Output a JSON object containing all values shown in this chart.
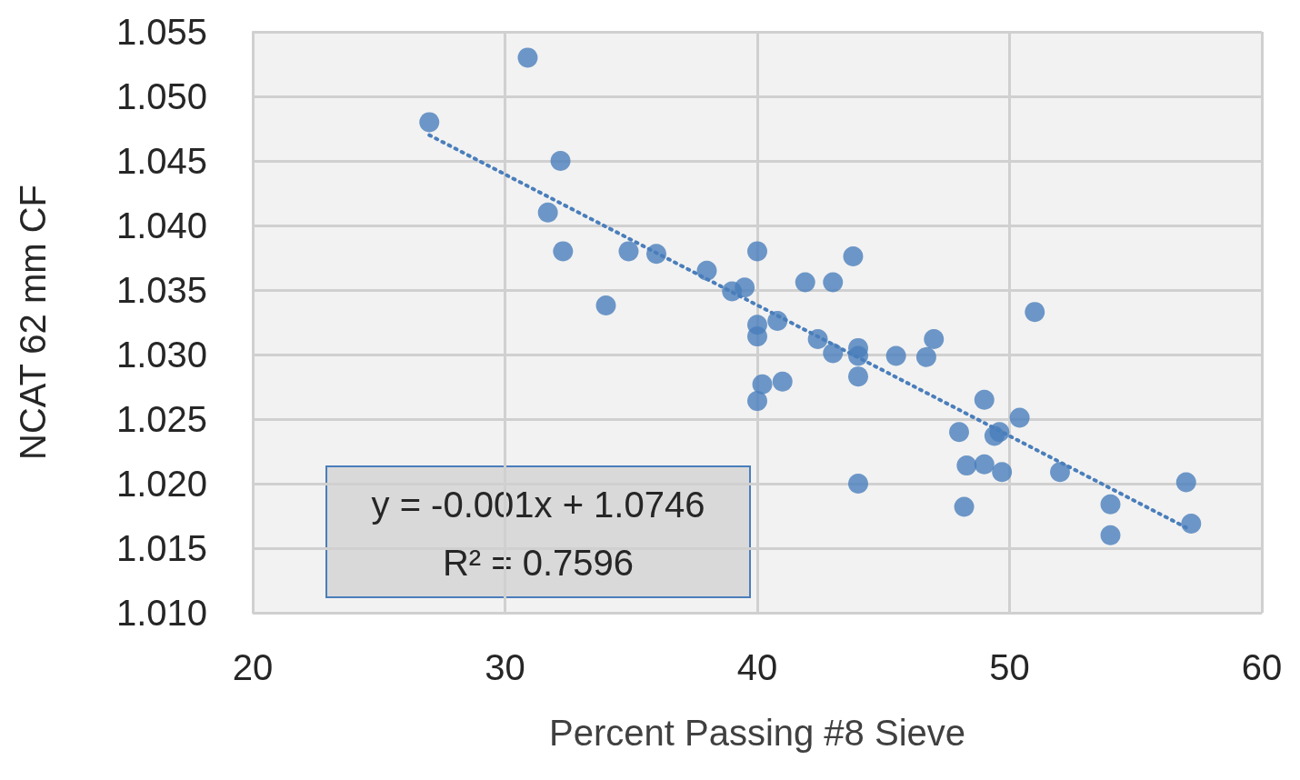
{
  "chart_data": {
    "type": "scatter",
    "xlabel": "Percent Passing #8 Sieve",
    "ylabel": "NCAT 62 mm CF",
    "xlim": [
      20,
      60
    ],
    "xticks": [
      20,
      30,
      40,
      50,
      60
    ],
    "ylim": [
      1.01,
      1.055
    ],
    "yticks": [
      {
        "value": 1.01,
        "label": "1.010"
      },
      {
        "value": 1.015,
        "label": "1.015"
      },
      {
        "value": 1.02,
        "label": "1.020"
      },
      {
        "value": 1.025,
        "label": "1.025"
      },
      {
        "value": 1.03,
        "label": "1.030"
      },
      {
        "value": 1.035,
        "label": "1.035"
      },
      {
        "value": 1.04,
        "label": "1.040"
      },
      {
        "value": 1.045,
        "label": "1.045"
      },
      {
        "value": 1.05,
        "label": "1.050"
      },
      {
        "value": 1.055,
        "label": "1.055"
      }
    ],
    "grid": true,
    "marker": "circle",
    "annotations": [
      "y = -0.001x + 1.0746",
      "R² = 0.7596"
    ],
    "series": [
      {
        "color": "#4a7ebb",
        "x": [
          27.0,
          30.9,
          32.2,
          31.7,
          32.3,
          34.0,
          34.9,
          36.0,
          38.0,
          39.0,
          39.5,
          40.0,
          40.0,
          40.0,
          40.8,
          40.2,
          40.0,
          41.0,
          41.9,
          43.0,
          43.8,
          42.4,
          43.0,
          44.0,
          44.0,
          44.0,
          44.0,
          45.5,
          46.7,
          47.0,
          51.0,
          49.0,
          48.0,
          50.4,
          49.4,
          49.6,
          48.3,
          49.0,
          49.7,
          52.0,
          48.2,
          54.0,
          54.0,
          57.0,
          57.2
        ],
        "values": [
          1.048,
          1.053,
          1.045,
          1.041,
          1.038,
          1.0338,
          1.038,
          1.0378,
          1.0365,
          1.0349,
          1.0352,
          1.038,
          1.0323,
          1.0314,
          1.0326,
          1.0277,
          1.0264,
          1.0279,
          1.0356,
          1.0356,
          1.0376,
          1.0312,
          1.0301,
          1.0305,
          1.0299,
          1.0283,
          1.02,
          1.0299,
          1.0298,
          1.0312,
          1.0333,
          1.0265,
          1.024,
          1.0251,
          1.0237,
          1.024,
          1.0214,
          1.0215,
          1.0209,
          1.0209,
          1.0182,
          1.0184,
          1.016,
          1.0201,
          1.0169
        ]
      },
      {
        "type": "line",
        "color": "#4a7ebb",
        "x": [
          27,
          57
        ],
        "values": [
          1.047,
          1.0166
        ],
        "line_style": "dotted",
        "marker": "none"
      }
    ]
  }
}
